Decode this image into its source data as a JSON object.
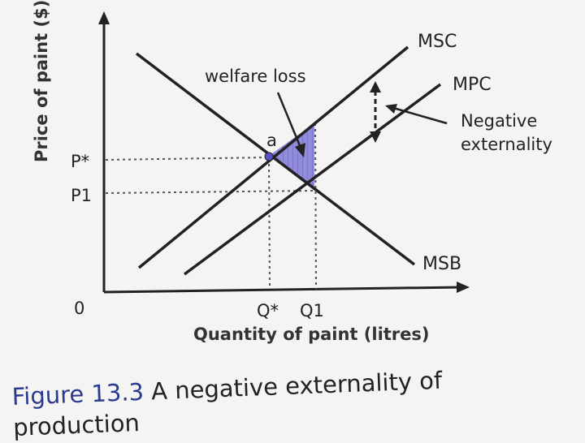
{
  "diagram": {
    "y_axis_label": "Price of paint ($)",
    "x_axis_label": "Quantity of paint (litres)",
    "origin_label": "0",
    "curves": {
      "msc": "MSC",
      "mpc": "MPC",
      "msb": "MSB"
    },
    "price_ticks": {
      "p_star": "P*",
      "p1": "P1"
    },
    "quantity_ticks": {
      "q_star": "Q*",
      "q1": "Q1"
    },
    "point_a": "a",
    "welfare_loss_label": "welfare loss",
    "externality_label_line1": "Negative",
    "externality_label_line2": "externality",
    "colors": {
      "welfare_loss_fill": "#8c86d8",
      "axis": "#222222",
      "caption_figure": "#2a3a8f"
    }
  },
  "caption": {
    "figure_number": "Figure 13.3",
    "text_line1": "A negative externality of",
    "text_line2": "production"
  }
}
